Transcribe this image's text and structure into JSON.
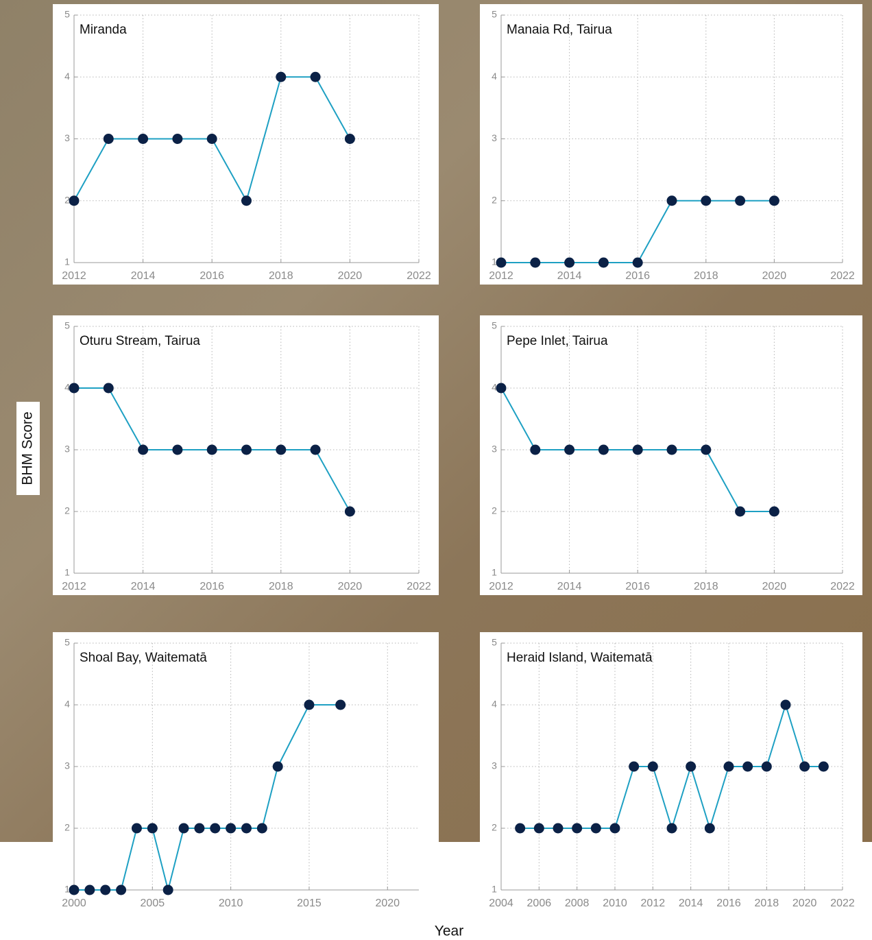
{
  "y_label": "BHM Score",
  "x_label": "Year",
  "chart_data": [
    {
      "type": "line",
      "title": "Miranda",
      "x": [
        2012,
        2013,
        2014,
        2015,
        2016,
        2017,
        2018,
        2019,
        2020
      ],
      "values": [
        2,
        3,
        3,
        3,
        3,
        2,
        4,
        4,
        3
      ],
      "color": "#1ea0c3",
      "marker_color": "#0b2146",
      "xlim": [
        2012,
        2022
      ],
      "xticks": [
        2012,
        2014,
        2016,
        2018,
        2020,
        2022
      ],
      "ylim": [
        1,
        5
      ],
      "yticks": [
        1,
        2,
        3,
        4,
        5
      ],
      "grid": true
    },
    {
      "type": "line",
      "title": "Manaia Rd, Tairua",
      "x": [
        2012,
        2013,
        2014,
        2015,
        2016,
        2017,
        2018,
        2019,
        2020
      ],
      "values": [
        1,
        1,
        1,
        1,
        1,
        2,
        2,
        2,
        2
      ],
      "color": "#1ea0c3",
      "marker_color": "#0b2146",
      "xlim": [
        2012,
        2022
      ],
      "xticks": [
        2012,
        2014,
        2016,
        2018,
        2020,
        2022
      ],
      "ylim": [
        1,
        5
      ],
      "yticks": [
        1,
        2,
        3,
        4,
        5
      ],
      "grid": true
    },
    {
      "type": "line",
      "title": "Oturu Stream, Tairua",
      "x": [
        2012,
        2013,
        2014,
        2015,
        2016,
        2017,
        2018,
        2019,
        2020
      ],
      "values": [
        4,
        4,
        3,
        3,
        3,
        3,
        3,
        3,
        2
      ],
      "color": "#1ea0c3",
      "marker_color": "#0b2146",
      "xlim": [
        2012,
        2022
      ],
      "xticks": [
        2012,
        2014,
        2016,
        2018,
        2020,
        2022
      ],
      "ylim": [
        1,
        5
      ],
      "yticks": [
        1,
        2,
        3,
        4,
        5
      ],
      "grid": true
    },
    {
      "type": "line",
      "title": "Pepe Inlet, Tairua",
      "x": [
        2012,
        2013,
        2014,
        2015,
        2016,
        2017,
        2018,
        2019,
        2020
      ],
      "values": [
        4,
        3,
        3,
        3,
        3,
        3,
        3,
        2,
        2
      ],
      "color": "#1ea0c3",
      "marker_color": "#0b2146",
      "xlim": [
        2012,
        2022
      ],
      "xticks": [
        2012,
        2014,
        2016,
        2018,
        2020,
        2022
      ],
      "ylim": [
        1,
        5
      ],
      "yticks": [
        1,
        2,
        3,
        4,
        5
      ],
      "grid": true
    },
    {
      "type": "line",
      "title": "Shoal Bay, Waitematā",
      "x": [
        2000,
        2001,
        2002,
        2003,
        2004,
        2005,
        2006,
        2007,
        2008,
        2009,
        2010,
        2011,
        2012,
        2013,
        2015,
        2017
      ],
      "values": [
        1,
        1,
        1,
        1,
        2,
        2,
        1,
        2,
        2,
        2,
        2,
        2,
        2,
        3,
        4,
        4
      ],
      "color": "#1ea0c3",
      "marker_color": "#0b2146",
      "xlim": [
        2000,
        2022
      ],
      "xticks": [
        2000,
        2005,
        2010,
        2015,
        2020
      ],
      "ylim": [
        1,
        5
      ],
      "yticks": [
        1,
        2,
        3,
        4,
        5
      ],
      "grid": true
    },
    {
      "type": "line",
      "title": "Heraid Island, Waitematā",
      "x": [
        2005,
        2006,
        2007,
        2008,
        2009,
        2010,
        2011,
        2012,
        2013,
        2014,
        2015,
        2016,
        2017,
        2018,
        2019,
        2020,
        2021
      ],
      "values": [
        2,
        2,
        2,
        2,
        2,
        2,
        3,
        3,
        2,
        3,
        2,
        3,
        3,
        3,
        4,
        3,
        3
      ],
      "color": "#1ea0c3",
      "marker_color": "#0b2146",
      "xlim": [
        2004,
        2022
      ],
      "xticks": [
        2004,
        2006,
        2008,
        2010,
        2012,
        2014,
        2016,
        2018,
        2020,
        2022
      ],
      "ylim": [
        1,
        5
      ],
      "yticks": [
        1,
        2,
        3,
        4,
        5
      ],
      "grid": true
    }
  ]
}
